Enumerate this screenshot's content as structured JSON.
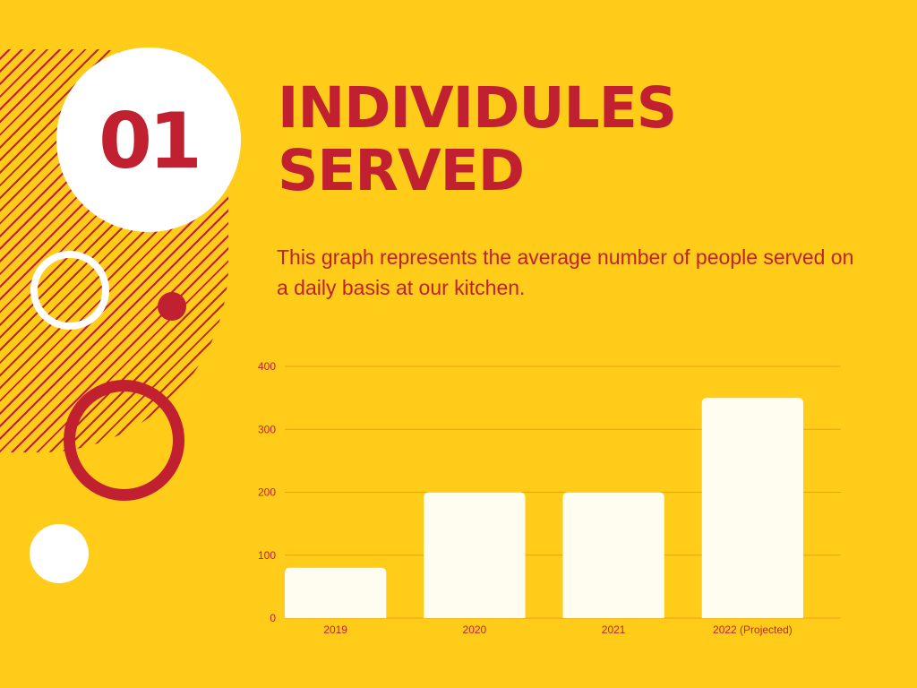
{
  "slide": {
    "number": "01",
    "title_line1": "INDIVIDULES",
    "title_line2": "SERVED",
    "description": "This graph represents the average number of people served on a daily basis at our kitchen."
  },
  "colors": {
    "background": "#FFCC1A",
    "accent": "#C0202F",
    "bar": "#FFFDF0",
    "white": "#FFFFFF",
    "gridline": "#E8A01E"
  },
  "chart_data": {
    "type": "bar",
    "categories": [
      "2019",
      "2020",
      "2021",
      "2022 (Projected)"
    ],
    "values": [
      80,
      200,
      200,
      350
    ],
    "yticks": [
      0,
      100,
      200,
      300,
      400
    ],
    "ylim": [
      0,
      400
    ],
    "grid": true,
    "title": "",
    "xlabel": "",
    "ylabel": ""
  }
}
